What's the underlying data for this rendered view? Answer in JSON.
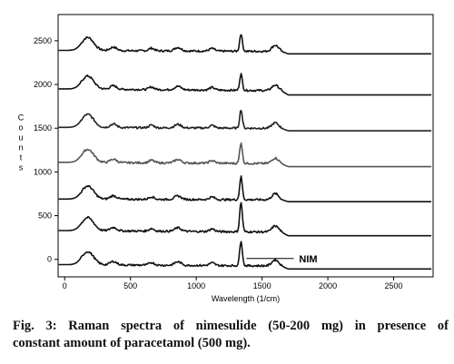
{
  "chart_data": {
    "type": "line",
    "title": "",
    "xlabel": "Wavelength (1/cm)",
    "ylabel": "Counts",
    "xlim": [
      -50,
      2800
    ],
    "ylim": [
      -200,
      2800
    ],
    "x_ticks": [
      0,
      500,
      1000,
      1500,
      2000,
      2500
    ],
    "y_ticks": [
      0,
      500,
      1000,
      1500,
      2000,
      2500
    ],
    "grid": false,
    "legend": "none",
    "annotation": "NIM",
    "annotation_target": {
      "x": 1340,
      "y": 10
    },
    "spectrum_end_x": 1700,
    "spectrum_peaks": [
      {
        "x": 175,
        "y": 150
      },
      {
        "x": 370,
        "y": 40
      },
      {
        "x": 660,
        "y": 30
      },
      {
        "x": 860,
        "y": 40
      },
      {
        "x": 1120,
        "y": 30
      },
      {
        "x": 1340,
        "y": 250
      },
      {
        "x": 1600,
        "y": 70
      }
    ],
    "series": [
      {
        "baseline_left": 2390,
        "baseline_right": 2350,
        "peak_scale": [
          1.0,
          1.0,
          1.0,
          1.0,
          1.0,
          0.8,
          1.0
        ],
        "color": "#111111"
      },
      {
        "baseline_left": 1950,
        "baseline_right": 1880,
        "peak_scale": [
          1.0,
          1.0,
          1.0,
          1.0,
          1.0,
          0.75,
          0.9
        ],
        "color": "#111111"
      },
      {
        "baseline_left": 1510,
        "baseline_right": 1470,
        "peak_scale": [
          1.0,
          1.0,
          1.0,
          1.0,
          1.0,
          0.85,
          0.9
        ],
        "color": "#222222"
      },
      {
        "baseline_left": 1110,
        "baseline_right": 1060,
        "peak_scale": [
          1.0,
          1.0,
          1.0,
          1.0,
          1.0,
          0.95,
          0.9
        ],
        "color": "#555555"
      },
      {
        "baseline_left": 690,
        "baseline_right": 660,
        "peak_scale": [
          1.0,
          1.0,
          1.0,
          1.0,
          1.0,
          1.05,
          1.0
        ],
        "color": "#111111"
      },
      {
        "baseline_left": 330,
        "baseline_right": 270,
        "peak_scale": [
          1.0,
          1.0,
          1.0,
          1.0,
          1.0,
          1.35,
          1.0
        ],
        "color": "#111111"
      },
      {
        "baseline_left": -60,
        "baseline_right": -110,
        "peak_scale": [
          1.0,
          1.0,
          1.0,
          1.0,
          1.0,
          1.15,
          1.0
        ],
        "color": "#111111"
      }
    ]
  },
  "caption": {
    "line1": "Fig. 3: Raman spectra of nimesulide (50-200 mg) in presence of",
    "line2": "constant amount of paracetamol (500 mg)."
  }
}
